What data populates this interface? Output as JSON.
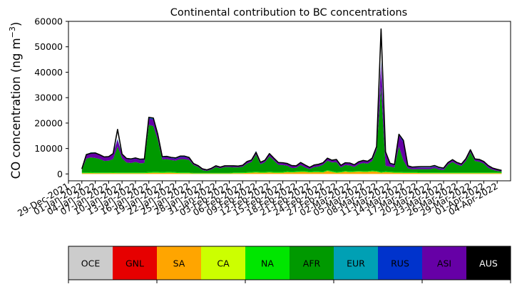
{
  "chart_data": {
    "type": "area",
    "title": "Continental contribution to BC concentrations",
    "ylabel_main": "CO concentration (ng m",
    "ylabel_sup": "−3",
    "ylabel_close": ")",
    "xlabel": "",
    "ylim": [
      0,
      60000
    ],
    "xlim": [
      "2021-12-29",
      "2022-04-07"
    ],
    "y_ticks": [
      0,
      10000,
      20000,
      30000,
      40000,
      50000,
      60000
    ],
    "x_ticks": [
      "2021-12-29",
      "2022-01-01",
      "2022-01-04",
      "2022-01-07",
      "2022-01-10",
      "2022-01-13",
      "2022-01-16",
      "2022-01-19",
      "2022-01-22",
      "2022-01-25",
      "2022-01-28",
      "2022-01-31",
      "2022-02-03",
      "2022-02-06",
      "2022-02-09",
      "2022-02-12",
      "2022-02-15",
      "2022-02-18",
      "2022-02-21",
      "2022-02-24",
      "2022-02-27",
      "2022-03-02",
      "2022-03-05",
      "2022-03-08",
      "2022-03-11",
      "2022-03-14",
      "2022-03-17",
      "2022-03-20",
      "2022-03-23",
      "2022-03-26",
      "2022-03-29",
      "2022-04-01",
      "2022-04-04"
    ],
    "x_tick_labels": [
      "29-Dec-2021",
      "01-Jan-2022",
      "04-Jan-2022",
      "07-Jan-2022",
      "10-Jan-2022",
      "13-Jan-2022",
      "16-Jan-2022",
      "19-Jan-2022",
      "22-Jan-2022",
      "25-Jan-2022",
      "28-Jan-2022",
      "31-Jan-2022",
      "03-Feb-2022",
      "06-Feb-2022",
      "09-Feb-2022",
      "12-Feb-2022",
      "15-Feb-2022",
      "18-Feb-2022",
      "21-Feb-2022",
      "24-Feb-2022",
      "27-Feb-2022",
      "02-Mar-2022",
      "05-Mar-2022",
      "08-Mar-2022",
      "11-Mar-2022",
      "14-Mar-2022",
      "17-Mar-2022",
      "20-Mar-2022",
      "23-Mar-2022",
      "26-Mar-2022",
      "29-Mar-2022",
      "01-Apr-2022",
      "04-Apr-2022"
    ],
    "x": [
      "2022-01-01",
      "2022-01-02",
      "2022-01-03",
      "2022-01-04",
      "2022-01-05",
      "2022-01-06",
      "2022-01-07",
      "2022-01-08",
      "2022-01-09",
      "2022-01-10",
      "2022-01-11",
      "2022-01-12",
      "2022-01-13",
      "2022-01-14",
      "2022-01-15",
      "2022-01-16",
      "2022-01-17",
      "2022-01-18",
      "2022-01-19",
      "2022-01-20",
      "2022-01-21",
      "2022-01-22",
      "2022-01-23",
      "2022-01-24",
      "2022-01-25",
      "2022-01-26",
      "2022-01-27",
      "2022-01-28",
      "2022-01-29",
      "2022-01-30",
      "2022-01-31",
      "2022-02-01",
      "2022-02-02",
      "2022-02-03",
      "2022-02-04",
      "2022-02-05",
      "2022-02-06",
      "2022-02-07",
      "2022-02-08",
      "2022-02-09",
      "2022-02-10",
      "2022-02-11",
      "2022-02-12",
      "2022-02-13",
      "2022-02-14",
      "2022-02-15",
      "2022-02-16",
      "2022-02-17",
      "2022-02-18",
      "2022-02-19",
      "2022-02-20",
      "2022-02-21",
      "2022-02-22",
      "2022-02-23",
      "2022-02-24",
      "2022-02-25",
      "2022-02-26",
      "2022-02-27",
      "2022-02-28",
      "2022-03-01",
      "2022-03-02",
      "2022-03-03",
      "2022-03-04",
      "2022-03-05",
      "2022-03-06",
      "2022-03-07",
      "2022-03-08",
      "2022-03-09",
      "2022-03-10",
      "2022-03-11",
      "2022-03-12",
      "2022-03-13",
      "2022-03-14",
      "2022-03-15",
      "2022-03-16",
      "2022-03-17",
      "2022-03-18",
      "2022-03-19",
      "2022-03-20",
      "2022-03-21",
      "2022-03-22",
      "2022-03-23",
      "2022-03-24",
      "2022-03-25",
      "2022-03-26",
      "2022-03-27",
      "2022-03-28",
      "2022-03-29",
      "2022-03-30",
      "2022-03-31",
      "2022-04-01",
      "2022-04-02",
      "2022-04-03",
      "2022-04-04",
      "2022-04-05"
    ],
    "series": [
      {
        "name": "SA",
        "color": "#ffa500",
        "values": [
          300,
          300,
          350,
          300,
          300,
          300,
          300,
          350,
          300,
          300,
          300,
          300,
          300,
          300,
          300,
          400,
          500,
          500,
          400,
          500,
          500,
          400,
          300,
          300,
          300,
          200,
          200,
          200,
          200,
          200,
          200,
          200,
          200,
          200,
          300,
          300,
          300,
          400,
          500,
          600,
          500,
          500,
          600,
          500,
          500,
          500,
          700,
          600,
          700,
          800,
          800,
          600,
          700,
          700,
          600,
          1200,
          800,
          500,
          600,
          900,
          700,
          800,
          900,
          800,
          800,
          1000,
          900,
          500,
          700,
          600,
          500,
          500,
          400,
          400,
          400,
          400,
          300,
          300,
          300,
          300,
          300,
          300,
          300,
          300,
          300,
          300,
          300,
          300,
          300,
          300,
          300,
          300,
          300,
          300,
          300
        ]
      },
      {
        "name": "NA",
        "color": "#00e600",
        "values": [
          300,
          300,
          350,
          300,
          300,
          300,
          300,
          300,
          300,
          300,
          300,
          300,
          300,
          300,
          300,
          350,
          350,
          350,
          350,
          350,
          350,
          300,
          300,
          300,
          300,
          200,
          200,
          200,
          200,
          200,
          200,
          200,
          200,
          200,
          300,
          300,
          300,
          300,
          300,
          300,
          300,
          300,
          300,
          300,
          300,
          300,
          300,
          300,
          300,
          300,
          300,
          300,
          300,
          300,
          300,
          300,
          300,
          300,
          300,
          300,
          300,
          300,
          300,
          300,
          300,
          300,
          300,
          300,
          300,
          300,
          300,
          300,
          300,
          300,
          300,
          300,
          300,
          300,
          300,
          300,
          300,
          300,
          300,
          300,
          300,
          300,
          300,
          300,
          300,
          300,
          300,
          300,
          300,
          300,
          300
        ]
      },
      {
        "name": "AFR",
        "color": "#009900",
        "values": [
          900,
          5400,
          5800,
          5700,
          5300,
          4500,
          4600,
          5200,
          10200,
          5500,
          3900,
          3700,
          4100,
          3600,
          3700,
          18500,
          18000,
          12600,
          4900,
          5000,
          4600,
          4500,
          5200,
          5200,
          4900,
          3100,
          2400,
          1100,
          800,
          1300,
          2300,
          1800,
          2300,
          2300,
          2000,
          2000,
          2200,
          3400,
          3900,
          6700,
          3000,
          3800,
          6000,
          4500,
          2800,
          2700,
          2200,
          1400,
          1400,
          2400,
          1400,
          1000,
          1700,
          1900,
          2700,
          3700,
          3400,
          3800,
          1600,
          2300,
          2300,
          1600,
          2600,
          3200,
          2900,
          3800,
          8200,
          33500,
          2200,
          2000,
          1700,
          9900,
          4600,
          1500,
          1100,
          1200,
          1300,
          1300,
          1300,
          1700,
          1100,
          900,
          3100,
          4100,
          3100,
          2500,
          4500,
          7900,
          4500,
          4200,
          3500,
          1800,
          1000,
          600,
          400
        ]
      },
      {
        "name": "ASI",
        "color": "#6600a6",
        "values": [
          300,
          1300,
          1700,
          1900,
          1500,
          1400,
          1400,
          2100,
          2600,
          1400,
          1300,
          1300,
          1300,
          1300,
          1300,
          2500,
          2500,
          1700,
          700,
          800,
          700,
          700,
          800,
          800,
          700,
          400,
          300,
          300,
          200,
          300,
          300,
          300,
          300,
          300,
          400,
          300,
          400,
          600,
          600,
          1200,
          600,
          600,
          800,
          700,
          700,
          700,
          700,
          800,
          600,
          900,
          800,
          500,
          600,
          700,
          600,
          800,
          700,
          900,
          700,
          700,
          800,
          600,
          800,
          800,
          800,
          900,
          1200,
          9000,
          5300,
          1000,
          900,
          4500,
          7000,
          800,
          600,
          600,
          600,
          600,
          600,
          600,
          500,
          500,
          600,
          700,
          600,
          600,
          700,
          1000,
          700,
          700,
          600,
          600,
          500,
          500,
          400
        ]
      },
      {
        "name": "RUS",
        "color": "#0033cc",
        "values": [
          100,
          200,
          200,
          200,
          200,
          200,
          200,
          200,
          300,
          200,
          200,
          200,
          200,
          200,
          200,
          300,
          300,
          200,
          200,
          200,
          200,
          200,
          200,
          200,
          200,
          100,
          100,
          100,
          100,
          100,
          100,
          100,
          100,
          100,
          100,
          100,
          100,
          100,
          100,
          200,
          100,
          100,
          200,
          100,
          100,
          100,
          100,
          100,
          100,
          100,
          100,
          100,
          100,
          100,
          100,
          100,
          100,
          100,
          100,
          100,
          100,
          100,
          100,
          100,
          100,
          100,
          100,
          500,
          500,
          200,
          200,
          500,
          700,
          100,
          100,
          100,
          100,
          100,
          100,
          100,
          100,
          100,
          100,
          100,
          100,
          100,
          100,
          200,
          100,
          100,
          100,
          100,
          100,
          100,
          100
        ]
      },
      {
        "name": "EUR",
        "color": "#00a0b4",
        "values": [
          100,
          100,
          100,
          100,
          100,
          100,
          100,
          100,
          100,
          100,
          100,
          100,
          100,
          100,
          100,
          200,
          200,
          100,
          100,
          100,
          100,
          100,
          100,
          100,
          100,
          100,
          100,
          100,
          100,
          100,
          100,
          100,
          100,
          100,
          100,
          100,
          100,
          100,
          100,
          100,
          100,
          100,
          100,
          100,
          100,
          100,
          100,
          100,
          100,
          100,
          100,
          100,
          100,
          100,
          100,
          100,
          100,
          100,
          100,
          100,
          100,
          100,
          100,
          100,
          100,
          100,
          100,
          300,
          300,
          100,
          100,
          200,
          200,
          100,
          100,
          100,
          100,
          100,
          100,
          100,
          100,
          100,
          100,
          100,
          100,
          100,
          100,
          100,
          100,
          100,
          100,
          100,
          100,
          100,
          100
        ]
      }
    ],
    "total": {
      "name": "Total",
      "color": "#000000",
      "values": [
        2000,
        7600,
        8150,
        8250,
        7550,
        6700,
        6800,
        8000,
        17500,
        7800,
        6100,
        5900,
        6300,
        5800,
        5900,
        22250,
        22000,
        15600,
        6800,
        6900,
        6500,
        6300,
        7000,
        7000,
        6500,
        4100,
        3300,
        2000,
        1600,
        2200,
        3200,
        2700,
        3200,
        3200,
        3200,
        3100,
        3400,
        4900,
        5500,
        8500,
        4600,
        5400,
        8000,
        6200,
        4500,
        4400,
        4100,
        3300,
        3200,
        4500,
        3500,
        2600,
        3500,
        3800,
        4400,
        6200,
        5400,
        5700,
        3400,
        4400,
        4300,
        3600,
        4800,
        5300,
        5000,
        6200,
        10800,
        57000,
        8700,
        4200,
        3700,
        15600,
        13200,
        3200,
        2700,
        2800,
        2900,
        2900,
        2900,
        3300,
        2600,
        2300,
        4500,
        5600,
        4500,
        3900,
        6000,
        9500,
        5900,
        5700,
        4900,
        3300,
        2300,
        1800,
        1400
      ]
    },
    "legend": [
      {
        "label": "OCE",
        "color": "#cccccc",
        "text_color": "#000000"
      },
      {
        "label": "GNL",
        "color": "#e60000",
        "text_color": "#000000"
      },
      {
        "label": "SA",
        "color": "#ffa500",
        "text_color": "#000000"
      },
      {
        "label": "CA",
        "color": "#ccff00",
        "text_color": "#000000"
      },
      {
        "label": "NA",
        "color": "#00e600",
        "text_color": "#000000"
      },
      {
        "label": "AFR",
        "color": "#009900",
        "text_color": "#000000"
      },
      {
        "label": "EUR",
        "color": "#00a0b4",
        "text_color": "#000000"
      },
      {
        "label": "RUS",
        "color": "#0033cc",
        "text_color": "#000000"
      },
      {
        "label": "ASI",
        "color": "#6600a6",
        "text_color": "#000000"
      },
      {
        "label": "AUS",
        "color": "#000000",
        "text_color": "#ffffff"
      }
    ],
    "grid": false,
    "legend_placement": "bottom"
  }
}
